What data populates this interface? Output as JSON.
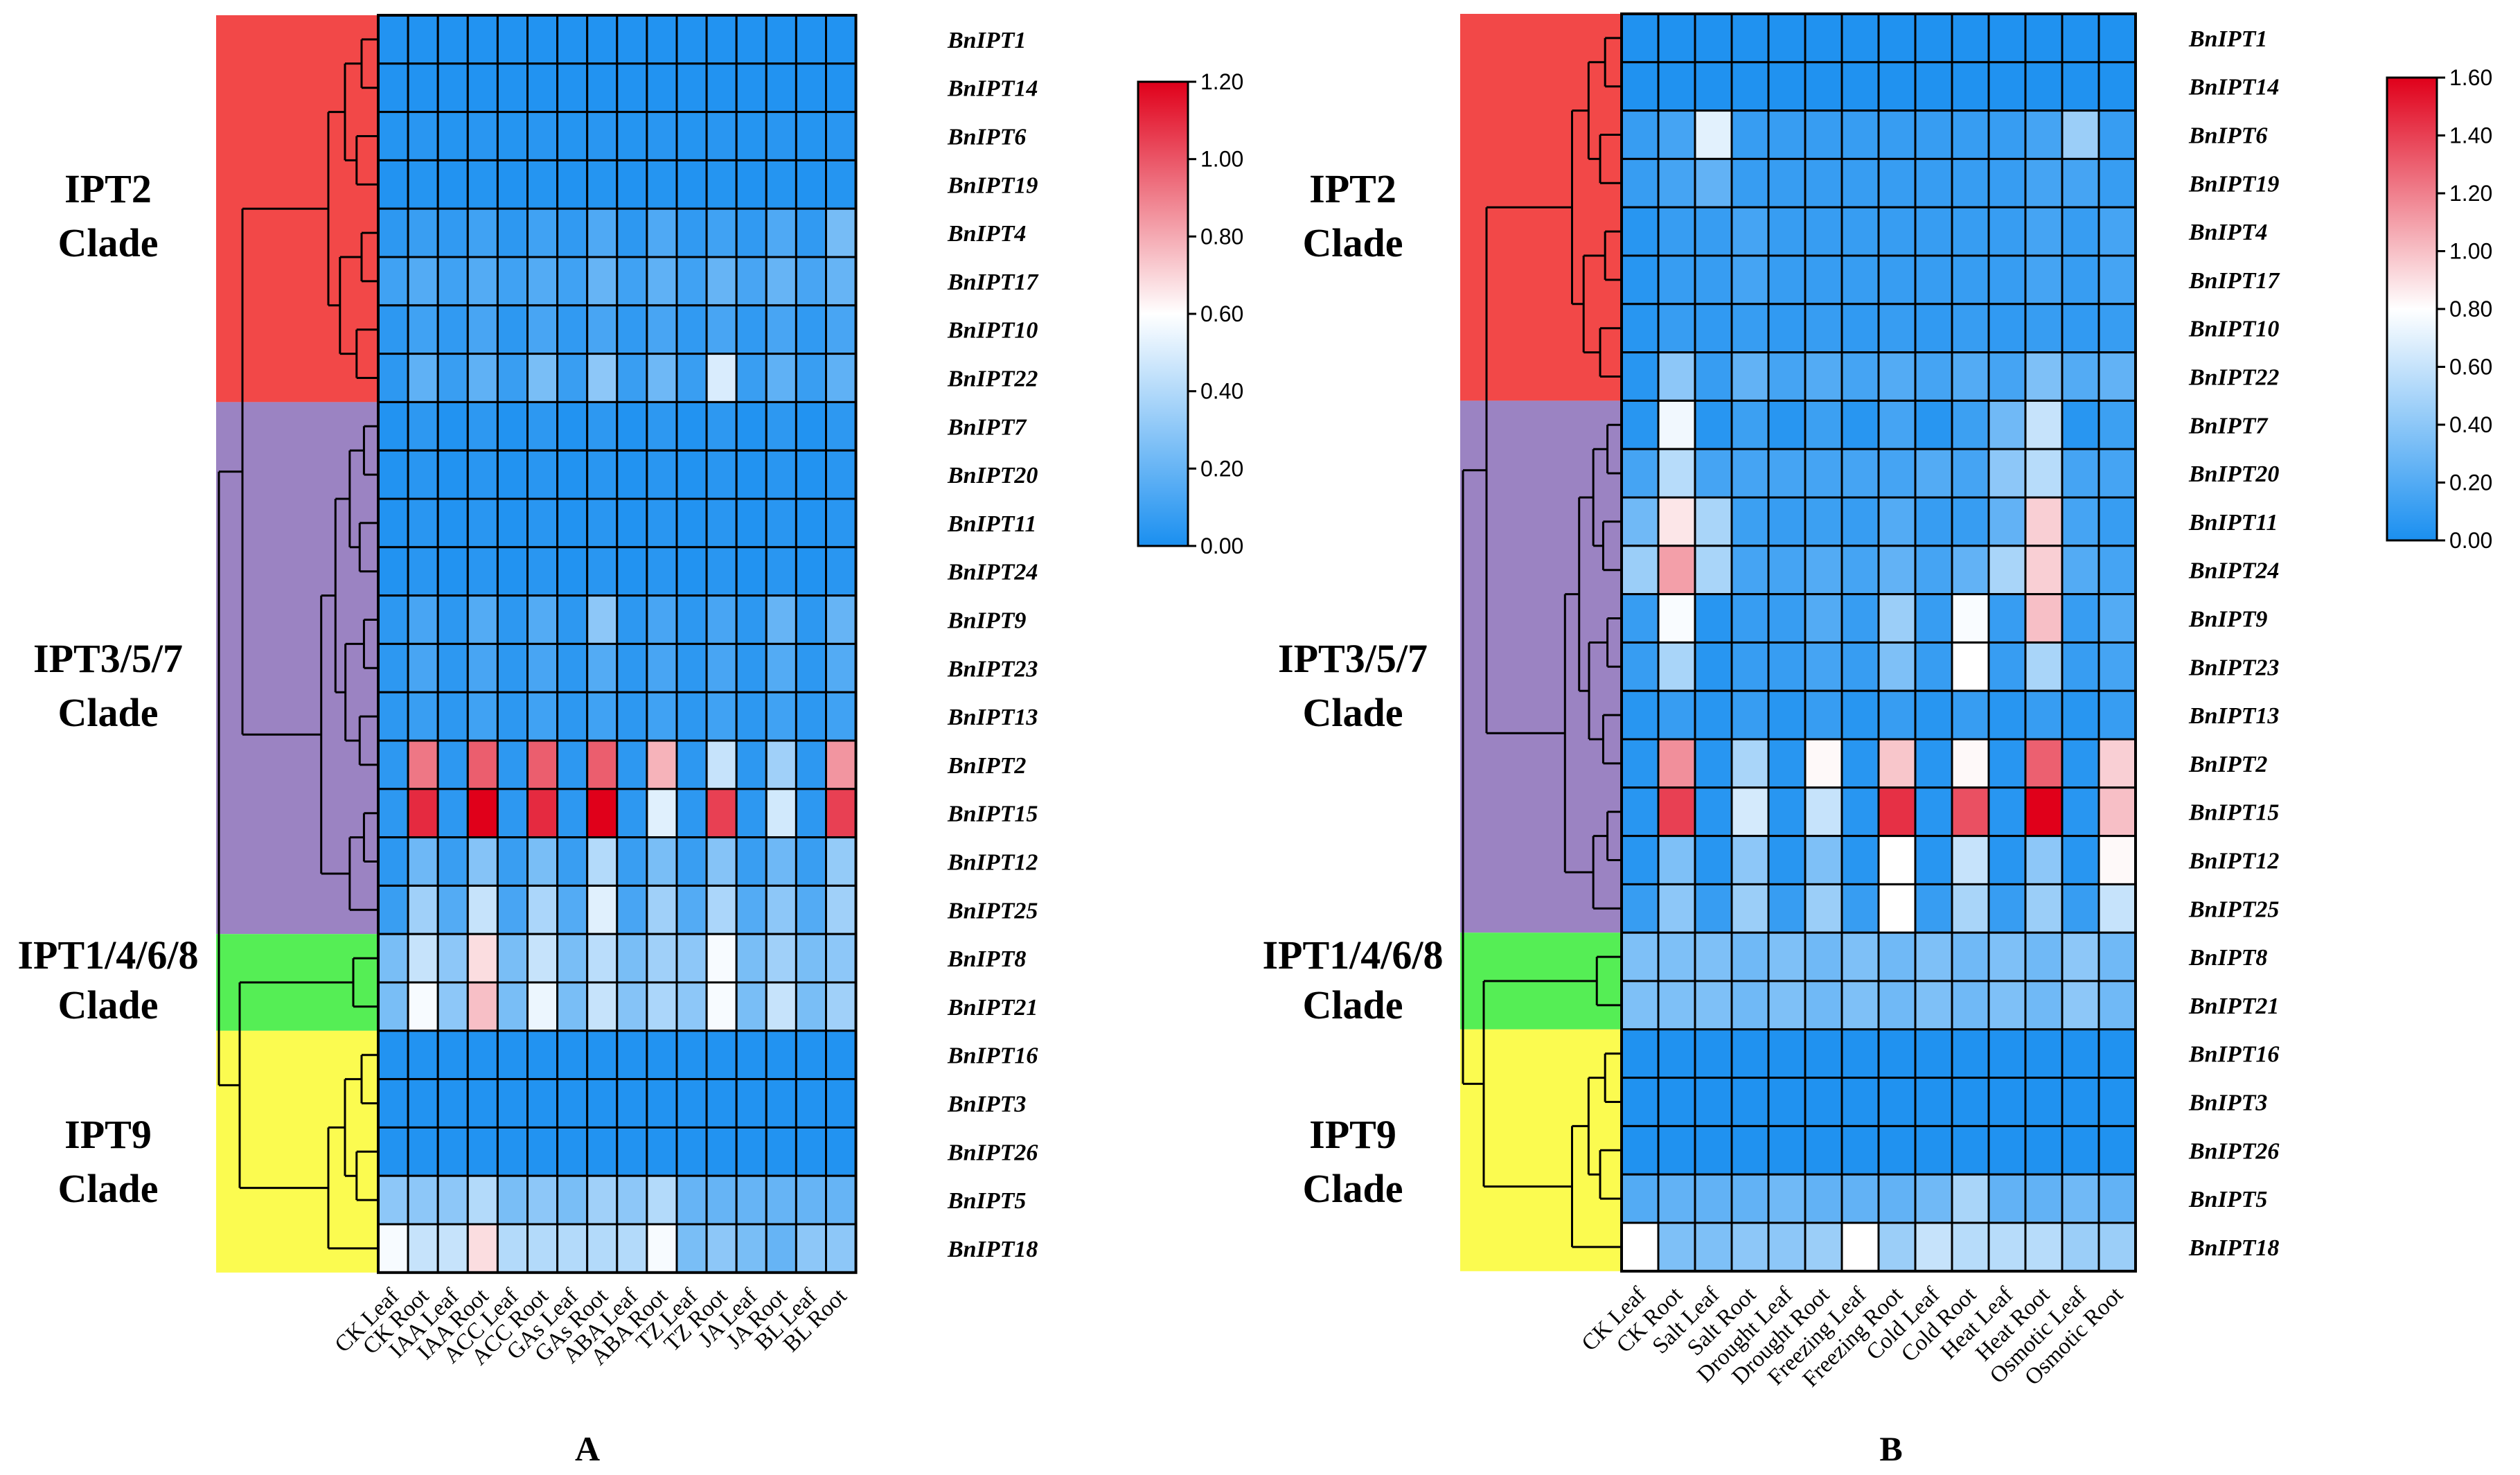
{
  "chart_data": [
    {
      "type": "heatmap",
      "panel_label": "A",
      "rows": [
        "BnIPT1",
        "BnIPT14",
        "BnIPT6",
        "BnIPT19",
        "BnIPT4",
        "BnIPT17",
        "BnIPT10",
        "BnIPT22",
        "BnIPT7",
        "BnIPT20",
        "BnIPT11",
        "BnIPT24",
        "BnIPT9",
        "BnIPT23",
        "BnIPT13",
        "BnIPT2",
        "BnIPT15",
        "BnIPT12",
        "BnIPT25",
        "BnIPT8",
        "BnIPT21",
        "BnIPT16",
        "BnIPT3",
        "BnIPT26",
        "BnIPT5",
        "BnIPT18"
      ],
      "columns": [
        "CK Leaf",
        "CK Root",
        "IAA Leaf",
        "IAA Root",
        "ACC Leaf",
        "ACC Root",
        "GAs Leaf",
        "GAs Root",
        "ABA Leaf",
        "ABA Root",
        "TZ Leaf",
        "TZ Root",
        "JA Leaf",
        "JA Root",
        "BL Leaf",
        "BL Root"
      ],
      "values": [
        [
          0.02,
          0.02,
          0.02,
          0.02,
          0.02,
          0.02,
          0.02,
          0.02,
          0.02,
          0.02,
          0.02,
          0.02,
          0.02,
          0.02,
          0.02,
          0.02
        ],
        [
          0.02,
          0.02,
          0.02,
          0.02,
          0.02,
          0.02,
          0.02,
          0.02,
          0.02,
          0.02,
          0.02,
          0.02,
          0.02,
          0.02,
          0.02,
          0.02
        ],
        [
          0.03,
          0.04,
          0.03,
          0.04,
          0.03,
          0.04,
          0.03,
          0.04,
          0.03,
          0.04,
          0.03,
          0.04,
          0.03,
          0.04,
          0.03,
          0.04
        ],
        [
          0.02,
          0.03,
          0.02,
          0.03,
          0.02,
          0.03,
          0.02,
          0.03,
          0.02,
          0.03,
          0.02,
          0.03,
          0.02,
          0.03,
          0.02,
          0.03
        ],
        [
          0.05,
          0.08,
          0.06,
          0.1,
          0.05,
          0.1,
          0.06,
          0.14,
          0.05,
          0.14,
          0.06,
          0.1,
          0.06,
          0.14,
          0.06,
          0.24
        ],
        [
          0.1,
          0.15,
          0.1,
          0.15,
          0.1,
          0.15,
          0.1,
          0.2,
          0.1,
          0.18,
          0.1,
          0.2,
          0.12,
          0.2,
          0.12,
          0.2
        ],
        [
          0.05,
          0.1,
          0.06,
          0.12,
          0.05,
          0.12,
          0.06,
          0.12,
          0.06,
          0.12,
          0.06,
          0.12,
          0.06,
          0.12,
          0.06,
          0.12
        ],
        [
          0.05,
          0.18,
          0.08,
          0.18,
          0.08,
          0.25,
          0.08,
          0.3,
          0.08,
          0.22,
          0.08,
          0.5,
          0.08,
          0.18,
          0.08,
          0.18
        ],
        [
          0.02,
          0.05,
          0.02,
          0.05,
          0.02,
          0.05,
          0.02,
          0.05,
          0.02,
          0.05,
          0.02,
          0.05,
          0.02,
          0.05,
          0.02,
          0.05
        ],
        [
          0.02,
          0.04,
          0.02,
          0.04,
          0.02,
          0.04,
          0.02,
          0.04,
          0.02,
          0.04,
          0.02,
          0.04,
          0.02,
          0.04,
          0.02,
          0.04
        ],
        [
          0.02,
          0.04,
          0.02,
          0.04,
          0.02,
          0.04,
          0.02,
          0.04,
          0.02,
          0.04,
          0.02,
          0.04,
          0.02,
          0.04,
          0.02,
          0.04
        ],
        [
          0.02,
          0.04,
          0.02,
          0.04,
          0.02,
          0.04,
          0.02,
          0.04,
          0.02,
          0.04,
          0.02,
          0.04,
          0.02,
          0.04,
          0.02,
          0.04
        ],
        [
          0.05,
          0.12,
          0.05,
          0.15,
          0.05,
          0.15,
          0.05,
          0.3,
          0.05,
          0.12,
          0.05,
          0.12,
          0.05,
          0.2,
          0.05,
          0.2
        ],
        [
          0.05,
          0.12,
          0.05,
          0.12,
          0.05,
          0.12,
          0.05,
          0.15,
          0.05,
          0.12,
          0.05,
          0.12,
          0.05,
          0.15,
          0.05,
          0.15
        ],
        [
          0.05,
          0.08,
          0.05,
          0.1,
          0.05,
          0.1,
          0.05,
          0.1,
          0.05,
          0.1,
          0.05,
          0.1,
          0.05,
          0.1,
          0.05,
          0.1
        ],
        [
          0.05,
          0.92,
          0.05,
          0.98,
          0.05,
          0.98,
          0.05,
          0.98,
          0.05,
          0.78,
          0.05,
          0.45,
          0.05,
          0.35,
          0.05,
          0.85
        ],
        [
          0.05,
          1.1,
          0.05,
          1.2,
          0.05,
          1.1,
          0.05,
          1.2,
          0.05,
          0.52,
          0.05,
          1.05,
          0.05,
          0.48,
          0.05,
          1.05
        ],
        [
          0.05,
          0.22,
          0.08,
          0.28,
          0.08,
          0.25,
          0.08,
          0.4,
          0.08,
          0.25,
          0.08,
          0.28,
          0.08,
          0.22,
          0.08,
          0.32
        ],
        [
          0.08,
          0.35,
          0.15,
          0.45,
          0.12,
          0.38,
          0.15,
          0.52,
          0.12,
          0.35,
          0.15,
          0.38,
          0.15,
          0.3,
          0.15,
          0.35
        ],
        [
          0.25,
          0.45,
          0.3,
          0.68,
          0.25,
          0.45,
          0.25,
          0.42,
          0.25,
          0.35,
          0.3,
          0.58,
          0.25,
          0.35,
          0.25,
          0.3
        ],
        [
          0.25,
          0.58,
          0.3,
          0.75,
          0.25,
          0.55,
          0.25,
          0.45,
          0.28,
          0.38,
          0.3,
          0.58,
          0.25,
          0.45,
          0.25,
          0.35
        ],
        [
          0.02,
          0.02,
          0.02,
          0.02,
          0.02,
          0.02,
          0.02,
          0.02,
          0.02,
          0.02,
          0.02,
          0.02,
          0.02,
          0.02,
          0.02,
          0.02
        ],
        [
          0.02,
          0.02,
          0.02,
          0.02,
          0.02,
          0.02,
          0.02,
          0.02,
          0.02,
          0.02,
          0.02,
          0.02,
          0.02,
          0.02,
          0.02,
          0.02
        ],
        [
          0.02,
          0.02,
          0.02,
          0.02,
          0.02,
          0.02,
          0.02,
          0.02,
          0.02,
          0.02,
          0.02,
          0.02,
          0.02,
          0.02,
          0.02,
          0.02
        ],
        [
          0.3,
          0.3,
          0.3,
          0.4,
          0.25,
          0.3,
          0.25,
          0.35,
          0.3,
          0.4,
          0.2,
          0.2,
          0.2,
          0.2,
          0.2,
          0.2
        ],
        [
          0.58,
          0.45,
          0.45,
          0.68,
          0.4,
          0.4,
          0.4,
          0.4,
          0.4,
          0.58,
          0.25,
          0.3,
          0.25,
          0.2,
          0.3,
          0.3
        ]
      ],
      "colorbar": {
        "min": 0.0,
        "max": 1.2,
        "ticks": [
          "1.20",
          "1.00",
          "0.80",
          "0.60",
          "0.40",
          "0.20",
          "0.00"
        ]
      }
    },
    {
      "type": "heatmap",
      "panel_label": "B",
      "rows": [
        "BnIPT1",
        "BnIPT14",
        "BnIPT6",
        "BnIPT19",
        "BnIPT4",
        "BnIPT17",
        "BnIPT10",
        "BnIPT22",
        "BnIPT7",
        "BnIPT20",
        "BnIPT11",
        "BnIPT24",
        "BnIPT9",
        "BnIPT23",
        "BnIPT13",
        "BnIPT2",
        "BnIPT15",
        "BnIPT12",
        "BnIPT25",
        "BnIPT8",
        "BnIPT21",
        "BnIPT16",
        "BnIPT3",
        "BnIPT26",
        "BnIPT5",
        "BnIPT18"
      ],
      "columns": [
        "CK Leaf",
        "CK Root",
        "Salt Leaf",
        "Salt Root",
        "Drought Leaf",
        "Drought Root",
        "Freezing Leaf",
        "Freezing Root",
        "Cold Leaf",
        "Cold Root",
        "Heat Leaf",
        "Heat Root",
        "Osmotic Leaf",
        "Osmotic Root"
      ],
      "values": [
        [
          0.02,
          0.02,
          0.02,
          0.02,
          0.02,
          0.02,
          0.02,
          0.02,
          0.02,
          0.02,
          0.02,
          0.02,
          0.02,
          0.02
        ],
        [
          0.02,
          0.02,
          0.02,
          0.02,
          0.02,
          0.02,
          0.02,
          0.02,
          0.02,
          0.02,
          0.02,
          0.02,
          0.02,
          0.02
        ],
        [
          0.1,
          0.15,
          0.7,
          0.1,
          0.1,
          0.1,
          0.1,
          0.1,
          0.1,
          0.1,
          0.1,
          0.15,
          0.45,
          0.1
        ],
        [
          0.1,
          0.15,
          0.25,
          0.1,
          0.1,
          0.1,
          0.1,
          0.1,
          0.1,
          0.1,
          0.1,
          0.15,
          0.15,
          0.1
        ],
        [
          0.05,
          0.1,
          0.1,
          0.15,
          0.1,
          0.1,
          0.1,
          0.1,
          0.1,
          0.1,
          0.1,
          0.15,
          0.1,
          0.15
        ],
        [
          0.05,
          0.1,
          0.1,
          0.15,
          0.1,
          0.1,
          0.1,
          0.1,
          0.1,
          0.1,
          0.1,
          0.15,
          0.1,
          0.15
        ],
        [
          0.05,
          0.1,
          0.08,
          0.1,
          0.08,
          0.1,
          0.08,
          0.1,
          0.08,
          0.1,
          0.08,
          0.1,
          0.08,
          0.1
        ],
        [
          0.05,
          0.4,
          0.1,
          0.25,
          0.15,
          0.2,
          0.15,
          0.2,
          0.15,
          0.2,
          0.15,
          0.35,
          0.2,
          0.25
        ],
        [
          0.05,
          0.75,
          0.05,
          0.12,
          0.05,
          0.12,
          0.05,
          0.15,
          0.05,
          0.12,
          0.3,
          0.6,
          0.05,
          0.12
        ],
        [
          0.15,
          0.55,
          0.15,
          0.15,
          0.15,
          0.15,
          0.15,
          0.15,
          0.2,
          0.15,
          0.4,
          0.55,
          0.15,
          0.15
        ],
        [
          0.3,
          0.88,
          0.5,
          0.12,
          0.1,
          0.12,
          0.1,
          0.2,
          0.1,
          0.1,
          0.25,
          0.95,
          0.15,
          0.1
        ],
        [
          0.45,
          1.1,
          0.5,
          0.15,
          0.15,
          0.2,
          0.15,
          0.25,
          0.15,
          0.25,
          0.5,
          0.95,
          0.2,
          0.15
        ],
        [
          0.1,
          0.78,
          0.05,
          0.1,
          0.1,
          0.2,
          0.1,
          0.45,
          0.1,
          0.78,
          0.1,
          1.0,
          0.1,
          0.2
        ],
        [
          0.1,
          0.5,
          0.05,
          0.1,
          0.1,
          0.15,
          0.1,
          0.35,
          0.1,
          0.8,
          0.1,
          0.5,
          0.1,
          0.15
        ],
        [
          0.05,
          0.1,
          0.05,
          0.1,
          0.05,
          0.1,
          0.05,
          0.1,
          0.05,
          0.1,
          0.05,
          0.1,
          0.05,
          0.1
        ],
        [
          0.05,
          1.15,
          0.05,
          0.5,
          0.05,
          0.82,
          0.05,
          0.98,
          0.05,
          0.82,
          0.05,
          1.3,
          0.05,
          0.95
        ],
        [
          0.05,
          1.4,
          0.05,
          0.65,
          0.05,
          0.6,
          0.05,
          1.45,
          0.05,
          1.35,
          0.05,
          1.6,
          0.05,
          1.0
        ],
        [
          0.05,
          0.35,
          0.05,
          0.4,
          0.05,
          0.35,
          0.05,
          0.8,
          0.05,
          0.6,
          0.05,
          0.4,
          0.05,
          0.82
        ],
        [
          0.1,
          0.4,
          0.1,
          0.45,
          0.1,
          0.45,
          0.1,
          0.8,
          0.1,
          0.5,
          0.1,
          0.45,
          0.1,
          0.6
        ],
        [
          0.35,
          0.35,
          0.35,
          0.3,
          0.35,
          0.3,
          0.35,
          0.3,
          0.35,
          0.3,
          0.35,
          0.3,
          0.4,
          0.3
        ],
        [
          0.35,
          0.35,
          0.35,
          0.3,
          0.35,
          0.3,
          0.35,
          0.3,
          0.35,
          0.3,
          0.35,
          0.3,
          0.4,
          0.3
        ],
        [
          0.02,
          0.02,
          0.02,
          0.02,
          0.02,
          0.02,
          0.02,
          0.02,
          0.02,
          0.02,
          0.02,
          0.02,
          0.02,
          0.02
        ],
        [
          0.02,
          0.02,
          0.02,
          0.02,
          0.02,
          0.02,
          0.02,
          0.02,
          0.02,
          0.02,
          0.02,
          0.02,
          0.02,
          0.02
        ],
        [
          0.02,
          0.02,
          0.02,
          0.02,
          0.02,
          0.02,
          0.02,
          0.02,
          0.02,
          0.02,
          0.02,
          0.02,
          0.02,
          0.02
        ],
        [
          0.2,
          0.25,
          0.25,
          0.25,
          0.3,
          0.25,
          0.25,
          0.25,
          0.3,
          0.5,
          0.25,
          0.25,
          0.3,
          0.25
        ],
        [
          0.8,
          0.35,
          0.35,
          0.4,
          0.4,
          0.45,
          0.8,
          0.45,
          0.6,
          0.55,
          0.55,
          0.55,
          0.45,
          0.45
        ]
      ],
      "colorbar": {
        "min": 0.0,
        "max": 1.6,
        "ticks": [
          "1.60",
          "1.40",
          "1.20",
          "1.00",
          "0.80",
          "0.60",
          "0.40",
          "0.20",
          "0.00"
        ]
      }
    }
  ],
  "clades": [
    {
      "line1": "IPT2",
      "line2": "Clade",
      "color": "#f24848"
    },
    {
      "line1": "IPT3/5/7",
      "line2": "Clade",
      "color": "#9b83c2"
    },
    {
      "line1": "IPT1/4/6/8",
      "line2": "Clade",
      "color": "#55ee55"
    },
    {
      "line1": "IPT9",
      "line2": "Clade",
      "color": "#fbfb50"
    }
  ],
  "colors": {
    "low": "#1a8ff0",
    "mid": "#ffffff",
    "high": "#e0001a",
    "grid": "#000000"
  }
}
